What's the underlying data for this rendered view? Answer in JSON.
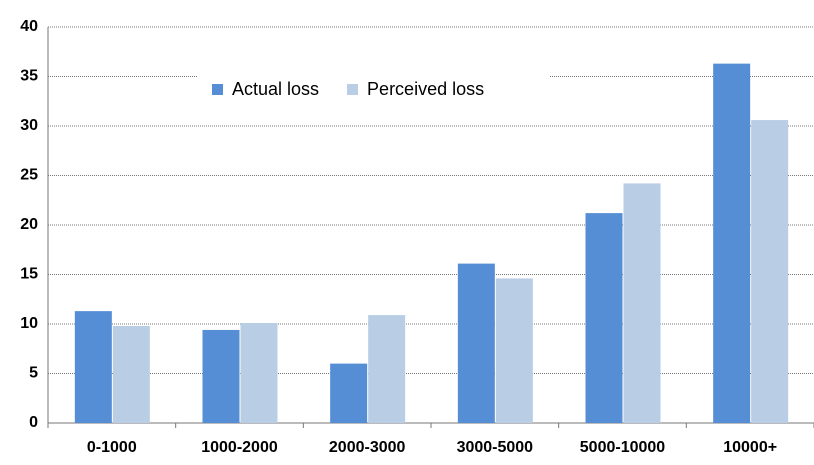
{
  "chart_data": {
    "type": "bar",
    "categories": [
      "0-1000",
      "1000-2000",
      "2000-3000",
      "3000-5000",
      "5000-10000",
      "10000+"
    ],
    "series": [
      {
        "name": "Actual loss",
        "color": "#558ed5",
        "values": [
          11.3,
          9.4,
          6.0,
          16.1,
          21.2,
          36.3
        ]
      },
      {
        "name": "Perceived loss",
        "color": "#b9cde5",
        "values": [
          9.8,
          10.1,
          10.9,
          14.6,
          24.2,
          30.6
        ]
      }
    ],
    "ylim": [
      0,
      40
    ],
    "yticks": [
      0,
      5,
      10,
      15,
      20,
      25,
      30,
      35,
      40
    ],
    "grid": true,
    "legend": "top"
  }
}
